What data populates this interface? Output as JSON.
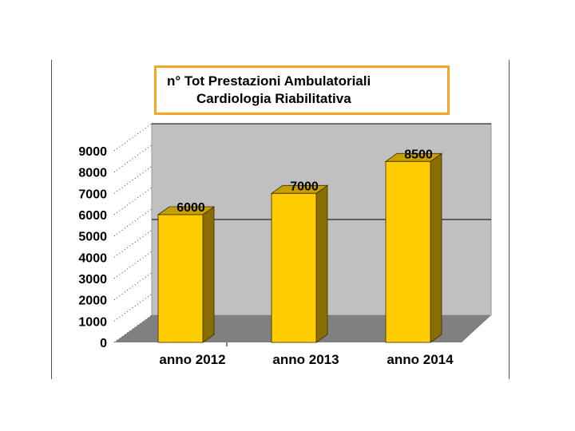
{
  "chart_data": {
    "type": "bar",
    "title_lines": [
      "n° Tot Prestazioni Ambulatoriali",
      "Cardiologia Riabilitativa"
    ],
    "categories": [
      "anno 2012",
      "anno 2013",
      "anno 2014"
    ],
    "values": [
      6000,
      7000,
      8500
    ],
    "data_labels": [
      "6000",
      "7000",
      "8500"
    ],
    "ylim": [
      0,
      9000
    ],
    "yticks": [
      0,
      1000,
      2000,
      3000,
      4000,
      5000,
      6000,
      7000,
      8000,
      9000
    ],
    "ytick_labels": [
      "0",
      "1000",
      "2000",
      "3000",
      "4000",
      "5000",
      "6000",
      "7000",
      "8000",
      "9000"
    ],
    "gridlines": [
      4500,
      9000
    ],
    "style": "3d-column",
    "colors": {
      "bar_front": "#ffcc00",
      "bar_side": "#8a6d00",
      "bar_top": "#c79f00",
      "wall": "#c0c0c0",
      "floor": "#808080",
      "title_border": "#f5a623"
    }
  }
}
